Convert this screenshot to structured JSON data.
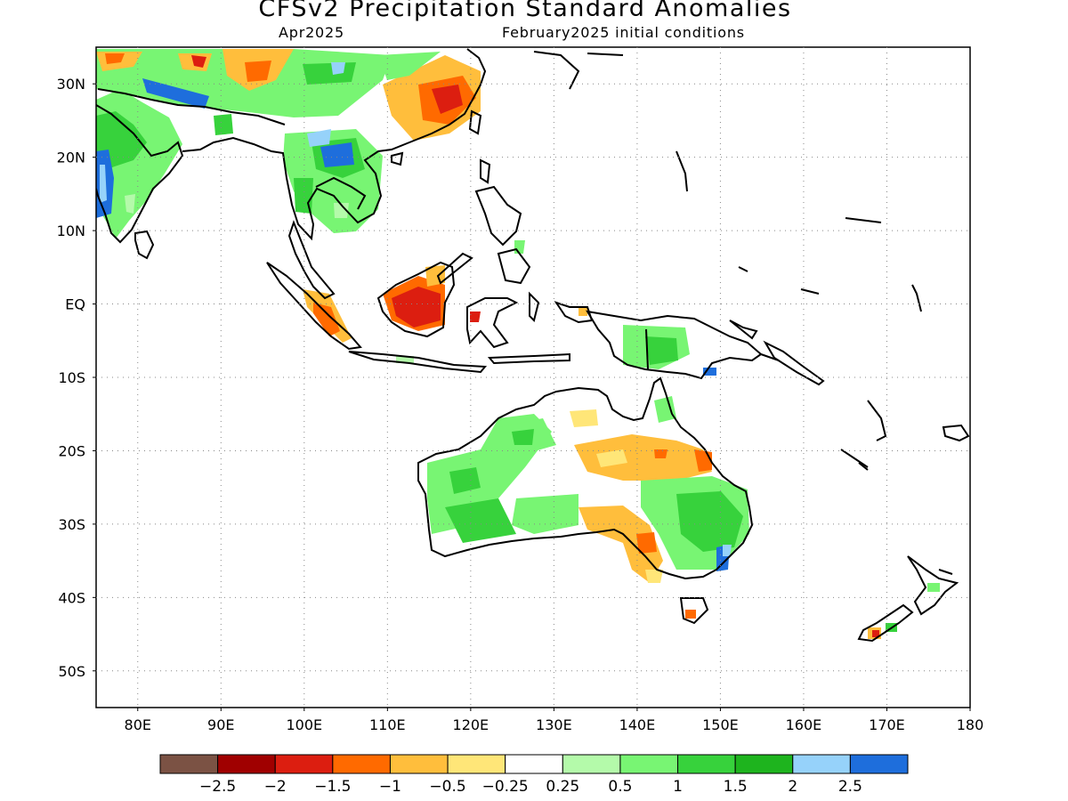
{
  "title": "CFSv2 Precipitation Standard Anomalies",
  "target_month": "Apr2025",
  "initial_conditions": "February2025 initial conditions",
  "map": {
    "lon_range": [
      75,
      180
    ],
    "lat_range": [
      -55,
      35
    ],
    "grid": "dotted",
    "x_ticks": [
      "80E",
      "90E",
      "100E",
      "110E",
      "120E",
      "130E",
      "140E",
      "150E",
      "160E",
      "170E",
      "180"
    ],
    "y_ticks": [
      "30N",
      "20N",
      "10N",
      "EQ",
      "10S",
      "20S",
      "30S",
      "40S",
      "50S"
    ]
  },
  "colorbar": {
    "colors": [
      "#7b5244",
      "#a00000",
      "#dc1e10",
      "#ff6a00",
      "#ffbe3c",
      "#ffe678",
      "#ffffff",
      "#b4faaa",
      "#78f573",
      "#37d23c",
      "#1eb41e",
      "#96d2fa",
      "#1e6edc"
    ],
    "labels": [
      "-2.5",
      "-2",
      "-1.5",
      "-1",
      "-0.5",
      "-0.25",
      "0.25",
      "0.5",
      "1",
      "1.5",
      "2",
      "2.5"
    ]
  }
}
